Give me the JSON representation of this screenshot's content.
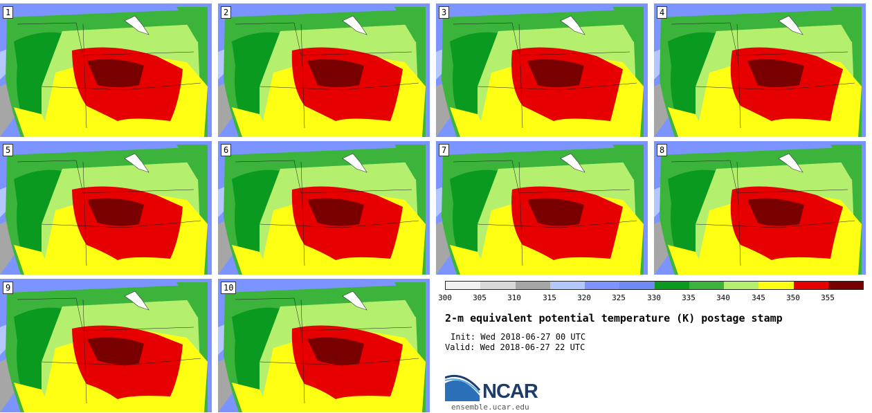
{
  "panels": [
    {
      "label": "1"
    },
    {
      "label": "2"
    },
    {
      "label": "3"
    },
    {
      "label": "4"
    },
    {
      "label": "5"
    },
    {
      "label": "6"
    },
    {
      "label": "7"
    },
    {
      "label": "8"
    },
    {
      "label": "9"
    },
    {
      "label": "10"
    }
  ],
  "colorbar": {
    "colors": [
      "#f0f0f0",
      "#d8d8d8",
      "#a6a6a6",
      "#b4c8ff",
      "#7c94ff",
      "#6e8bf5",
      "#0b9a20",
      "#3cb43c",
      "#b4f06e",
      "#ffff14",
      "#e60000",
      "#780000"
    ],
    "ticks": [
      "300",
      "305",
      "310",
      "315",
      "320",
      "325",
      "330",
      "335",
      "340",
      "345",
      "350",
      "355"
    ]
  },
  "title": "2-m equivalent potential temperature (K) postage stamp",
  "init": "Init: Wed 2018-06-27 00 UTC",
  "valid": "Valid: Wed 2018-06-27 22 UTC",
  "logo": {
    "text": "NCAR",
    "url_text": "ensemble.ucar.edu"
  }
}
